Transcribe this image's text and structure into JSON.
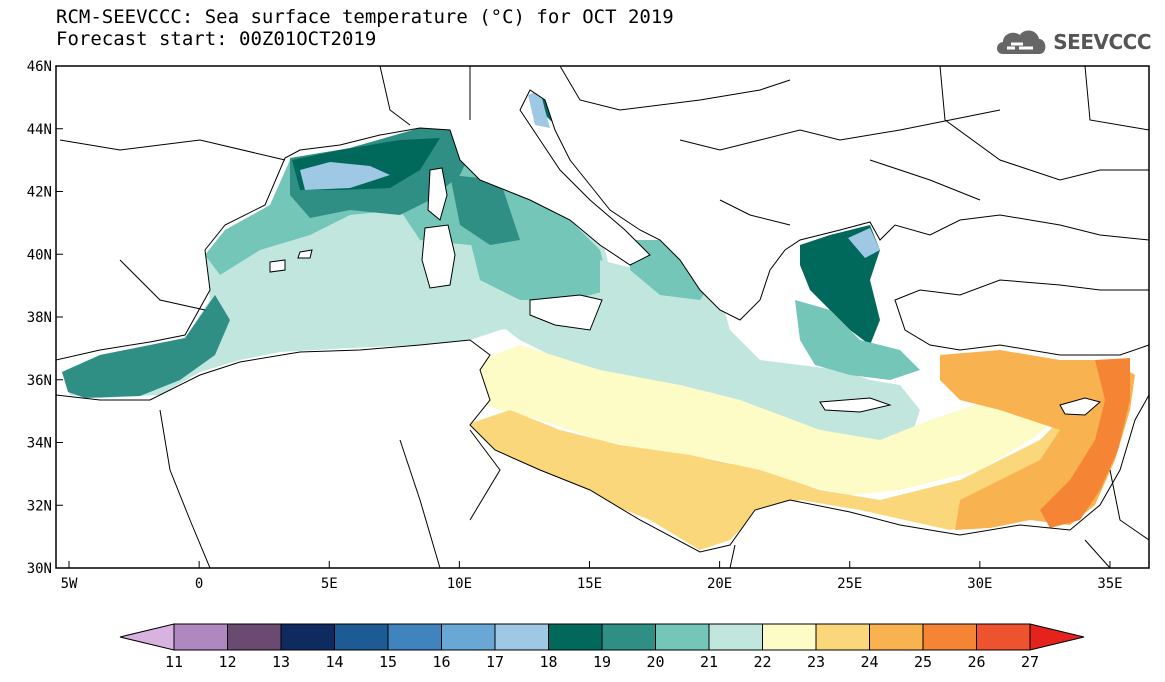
{
  "header": {
    "title": "RCM-SEEVCCC: Sea surface temperature (°C) for OCT 2019",
    "subtitle": "Forecast start: 00Z01OCT2019",
    "logo_text": "SEEVCCC",
    "logo_icon": "cloud-icon"
  },
  "map": {
    "lon_range": [
      -5.5,
      36.5
    ],
    "lat_range": [
      30,
      46
    ],
    "lon_ticks": [
      {
        "value": -5,
        "label": "5W"
      },
      {
        "value": 0,
        "label": "0"
      },
      {
        "value": 5,
        "label": "5E"
      },
      {
        "value": 10,
        "label": "10E"
      },
      {
        "value": 15,
        "label": "15E"
      },
      {
        "value": 20,
        "label": "20E"
      },
      {
        "value": 25,
        "label": "25E"
      },
      {
        "value": 30,
        "label": "30E"
      },
      {
        "value": 35,
        "label": "35E"
      }
    ],
    "lat_ticks": [
      {
        "value": 30,
        "label": "30N"
      },
      {
        "value": 32,
        "label": "32N"
      },
      {
        "value": 34,
        "label": "34N"
      },
      {
        "value": 36,
        "label": "36N"
      },
      {
        "value": 38,
        "label": "38N"
      },
      {
        "value": 40,
        "label": "40N"
      },
      {
        "value": 42,
        "label": "42N"
      },
      {
        "value": 44,
        "label": "44N"
      },
      {
        "value": 46,
        "label": "46N"
      }
    ]
  },
  "colorbar": {
    "labels": [
      "11",
      "12",
      "13",
      "14",
      "15",
      "16",
      "17",
      "18",
      "19",
      "20",
      "21",
      "22",
      "23",
      "24",
      "25",
      "26",
      "27"
    ],
    "colors": [
      "#d9b3e0",
      "#b088c0",
      "#6b4a72",
      "#0f2a5e",
      "#1d5b94",
      "#3f84bd",
      "#69a8d4",
      "#9ec8e3",
      "#00695c",
      "#2f8f85",
      "#74c6b8",
      "#c0e6de",
      "#fdfbc6",
      "#fbd77c",
      "#f9b250",
      "#f58535",
      "#ee5330",
      "#e3231c"
    ]
  }
}
